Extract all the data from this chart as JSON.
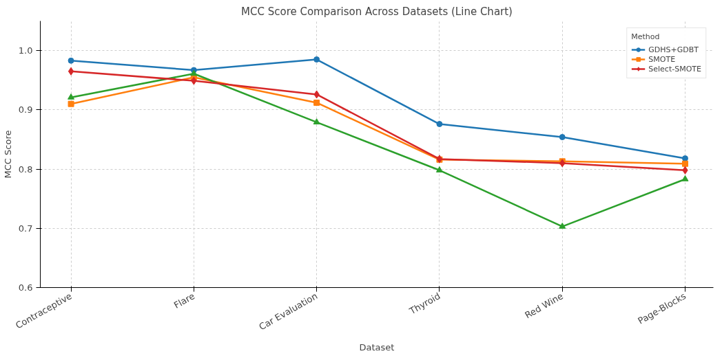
{
  "chart_data": {
    "type": "line",
    "title": "MCC Score Comparison Across Datasets (Line Chart)",
    "xlabel": "Dataset",
    "ylabel": "MCC Score",
    "legend_title": "Method",
    "categories": [
      "Contraceptive",
      "Flare",
      "Car Evaluation",
      "Thyroid",
      "Red Wine",
      "Page-Blocks"
    ],
    "series": [
      {
        "name": "GDHS+GDBT",
        "color": "#1f77b4",
        "marker": "circle",
        "values": [
          0.983,
          0.967,
          0.985,
          0.876,
          0.854,
          0.818
        ]
      },
      {
        "name": "SMOTE",
        "color": "#ff7f0e",
        "marker": "square",
        "values": [
          0.91,
          0.955,
          0.912,
          0.816,
          0.813,
          0.809
        ]
      },
      {
        "color": "#2ca02c",
        "marker": "triangle",
        "values": [
          0.921,
          0.961,
          0.879,
          0.798,
          0.703,
          0.783
        ]
      },
      {
        "name": "Select-SMOTE",
        "color": "#d62728",
        "marker": "diamond",
        "values": [
          0.965,
          0.949,
          0.926,
          0.817,
          0.81,
          0.798
        ]
      }
    ],
    "ylim": [
      0.6,
      1.05
    ],
    "yticks": [
      0.6,
      0.7,
      0.8,
      0.9,
      {
        "value": 1,
        "label": "1.0"
      }
    ],
    "grid": true,
    "legend": "top right",
    "line_style": "solid"
  }
}
